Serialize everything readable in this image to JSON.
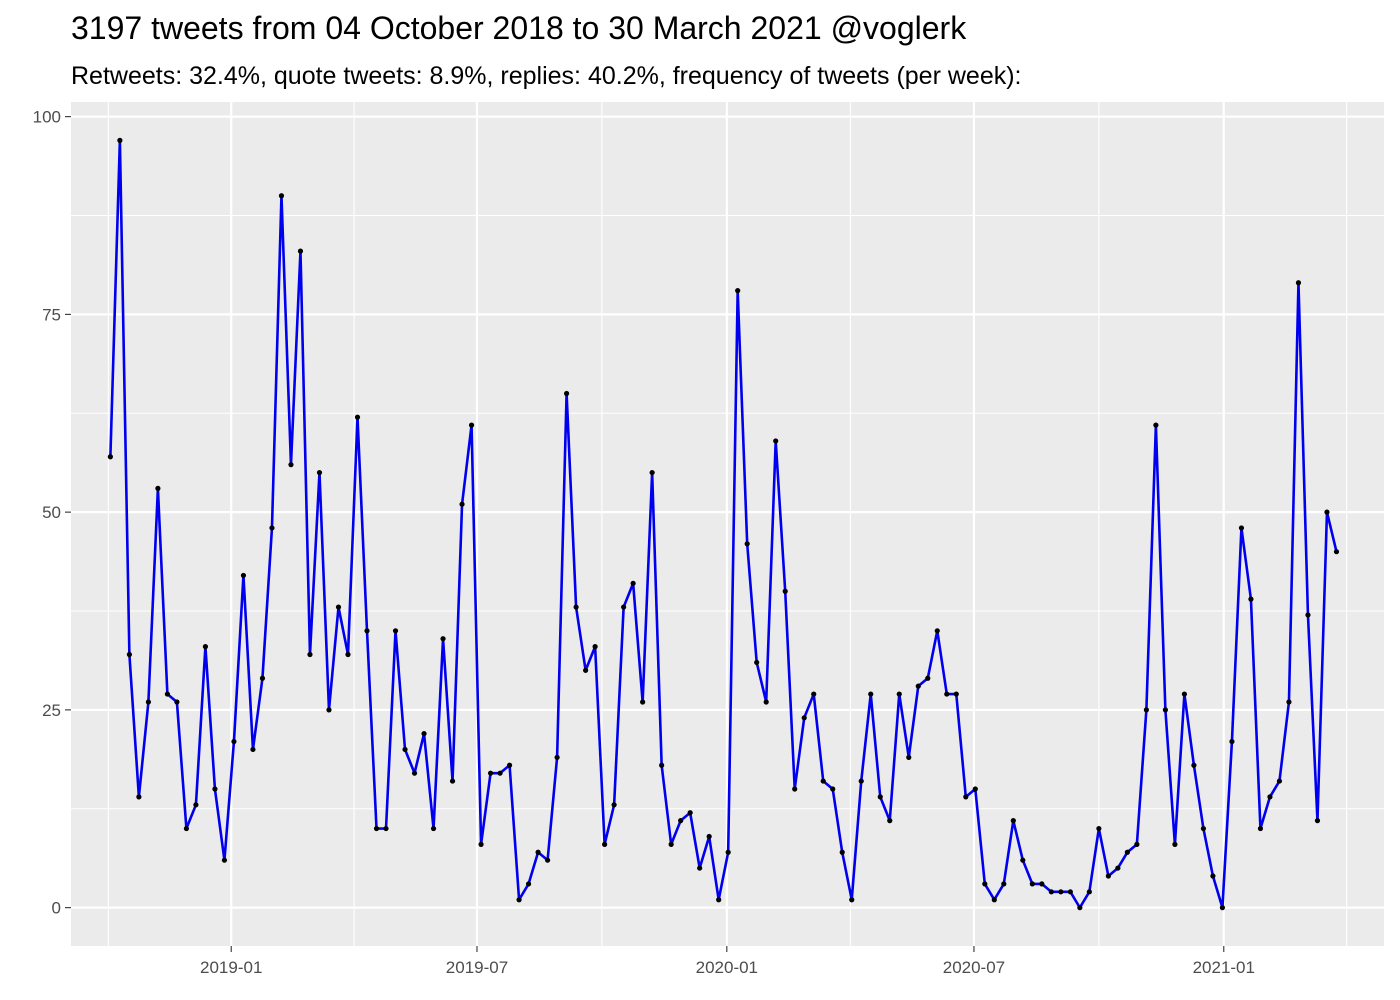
{
  "chart_data": {
    "type": "line",
    "title": "3197 tweets from 04 October 2018 to 30 March 2021 @voglerk",
    "subtitle": "Retweets: 32.4%, quote tweets: 8.9%, replies: 40.2%, frequency of tweets (per week):",
    "xlabel": "",
    "ylabel": "",
    "x_start": "2018-10-04",
    "x_step_days": 7,
    "xlim": [
      "2018-09-05",
      "2021-04-29"
    ],
    "ylim": [
      -4.85,
      101.85
    ],
    "y_ticks": [
      0,
      25,
      50,
      75,
      100
    ],
    "x_ticks": [
      {
        "date": "2019-01-01",
        "label": "2019-01"
      },
      {
        "date": "2019-07-01",
        "label": "2019-07"
      },
      {
        "date": "2020-01-01",
        "label": "2020-01"
      },
      {
        "date": "2020-07-01",
        "label": "2020-07"
      },
      {
        "date": "2021-01-01",
        "label": "2021-01"
      }
    ],
    "grid": true,
    "line_color": "#0000ee",
    "point_color": "#000000",
    "panel_color": "#ebebeb",
    "values": [
      57,
      97,
      32,
      14,
      26,
      53,
      27,
      26,
      10,
      13,
      33,
      15,
      6,
      21,
      42,
      20,
      29,
      48,
      90,
      56,
      83,
      32,
      55,
      25,
      38,
      32,
      62,
      35,
      10,
      10,
      35,
      20,
      17,
      22,
      10,
      34,
      16,
      51,
      61,
      8,
      17,
      17,
      18,
      1,
      3,
      7,
      6,
      19,
      65,
      38,
      30,
      33,
      8,
      13,
      38,
      41,
      26,
      55,
      18,
      8,
      11,
      12,
      5,
      9,
      1,
      7,
      78,
      46,
      31,
      26,
      59,
      40,
      15,
      24,
      27,
      16,
      15,
      7,
      1,
      16,
      27,
      14,
      11,
      27,
      19,
      28,
      29,
      35,
      27,
      27,
      14,
      15,
      3,
      1,
      3,
      11,
      6,
      3,
      3,
      2,
      2,
      2,
      0,
      2,
      10,
      4,
      5,
      7,
      8,
      25,
      61,
      25,
      8,
      27,
      18,
      10,
      4,
      0,
      21,
      48,
      39,
      10,
      14,
      16,
      26,
      79,
      37,
      11,
      50,
      45
    ]
  }
}
